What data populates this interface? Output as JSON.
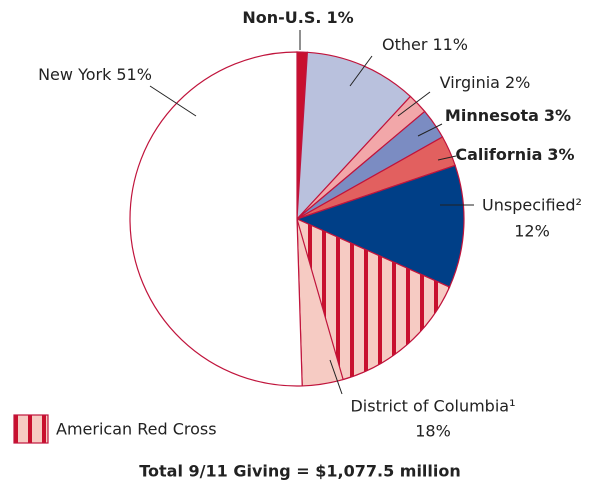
{
  "chart_data": {
    "type": "pie",
    "title": "Total 9/11 Giving = $1,077.5 million",
    "categories": [
      "Non-U.S.",
      "Other",
      "Virginia",
      "Minnesota",
      "California",
      "Unspecified²",
      "District of Columbia¹",
      "New York"
    ],
    "values": [
      1,
      11,
      2,
      3,
      3,
      12,
      18,
      51
    ],
    "value_labels": [
      "1%",
      "11%",
      "2%",
      "3%",
      "3%",
      "12%",
      "18%",
      "51%"
    ],
    "colors": [
      "#c8102e",
      "#b9c1dd",
      "#f2a7a9",
      "#7b8cc2",
      "#e2605f",
      "#003f87",
      "#f6cbc3",
      "#ffffff"
    ],
    "highlight": {
      "name": "American Red Cross",
      "slice": 6,
      "value": 14,
      "color": "#c8102e"
    }
  }
}
